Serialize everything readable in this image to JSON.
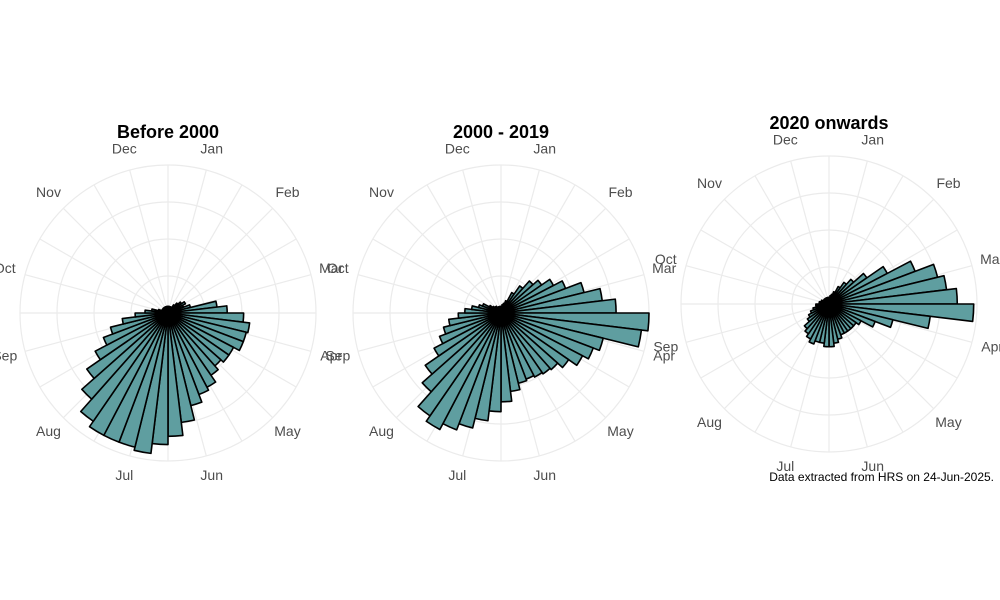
{
  "caption": "Data extracted from HRS on 24-Jun-2025.",
  "colors": {
    "bar_fill": "#5f9ea0",
    "bar_stroke": "#000000",
    "grid": "#ebebeb",
    "month_label": "#4d4d4d"
  },
  "chart_data": [
    {
      "type": "bar",
      "coord": "polar",
      "title": "Before 2000",
      "month_labels": [
        "Jan",
        "Feb",
        "Mar",
        "Apr",
        "May",
        "Jun",
        "Jul",
        "Aug",
        "Sep",
        "Oct",
        "Nov",
        "Dec"
      ],
      "week": [
        1,
        2,
        3,
        4,
        5,
        6,
        7,
        8,
        9,
        10,
        11,
        12,
        13,
        14,
        15,
        16,
        17,
        18,
        19,
        20,
        21,
        22,
        23,
        24,
        25,
        26,
        27,
        28,
        29,
        30,
        31,
        32,
        33,
        34,
        35,
        36,
        37,
        38,
        39,
        40,
        41,
        42,
        43,
        44,
        45,
        46,
        47,
        48,
        49,
        50,
        51,
        52
      ],
      "values": [
        4,
        4,
        4,
        4,
        4,
        6,
        8,
        10,
        12,
        10,
        14,
        30,
        36,
        46,
        50,
        49,
        49,
        45,
        45,
        43,
        46,
        51,
        53,
        58,
        67,
        75,
        80,
        86,
        84,
        84,
        84,
        80,
        70,
        60,
        50,
        42,
        36,
        28,
        20,
        14,
        10,
        6,
        4,
        4,
        4,
        4,
        4,
        4,
        4,
        4,
        4,
        4
      ],
      "rlim": [
        0,
        90
      ]
    },
    {
      "type": "bar",
      "coord": "polar",
      "title": "2000 - 2019",
      "month_labels": [
        "Jan",
        "Feb",
        "Mar",
        "Apr",
        "May",
        "Jun",
        "Jul",
        "Aug",
        "Sep",
        "Oct",
        "Nov",
        "Dec"
      ],
      "week": [
        1,
        2,
        3,
        4,
        5,
        6,
        7,
        8,
        9,
        10,
        11,
        12,
        13,
        14,
        15,
        16,
        17,
        18,
        19,
        20,
        21,
        22,
        23,
        24,
        25,
        26,
        27,
        28,
        29,
        30,
        31,
        32,
        33,
        34,
        35,
        36,
        37,
        38,
        39,
        40,
        41,
        42,
        43,
        44,
        45,
        46,
        47,
        48,
        49,
        50,
        51,
        52
      ],
      "values": [
        4,
        5,
        6,
        8,
        14,
        20,
        26,
        30,
        36,
        42,
        52,
        62,
        70,
        90,
        86,
        64,
        60,
        56,
        50,
        46,
        45,
        44,
        43,
        44,
        48,
        54,
        60,
        66,
        72,
        76,
        80,
        76,
        64,
        56,
        46,
        40,
        36,
        32,
        26,
        22,
        18,
        14,
        12,
        8,
        6,
        5,
        5,
        4,
        4,
        4,
        4,
        4
      ],
      "rlim": [
        0,
        90
      ]
    },
    {
      "type": "bar",
      "coord": "polar",
      "title": "2020 onwards",
      "month_labels": [
        "Jan",
        "Feb",
        "Mar",
        "Apr",
        "May",
        "Jun",
        "Jul",
        "Aug",
        "Sep",
        "Oct",
        "Nov",
        "Dec"
      ],
      "week": [
        1,
        2,
        3,
        4,
        5,
        6,
        7,
        8,
        9,
        10,
        11,
        12,
        13,
        14,
        15,
        16,
        17,
        18,
        19,
        20,
        21,
        22,
        23,
        24,
        25,
        26,
        27,
        28,
        29,
        30,
        31,
        32,
        33,
        34,
        35,
        36,
        37,
        38,
        39,
        40,
        41,
        42,
        43,
        44,
        45,
        46,
        47,
        48,
        49,
        50,
        51,
        52
      ],
      "values": [
        4,
        5,
        6,
        8,
        12,
        16,
        20,
        28,
        40,
        56,
        68,
        72,
        78,
        88,
        62,
        40,
        30,
        22,
        20,
        20,
        20,
        20,
        20,
        22,
        24,
        26,
        26,
        24,
        24,
        26,
        24,
        22,
        20,
        16,
        14,
        12,
        10,
        8,
        8,
        6,
        6,
        5,
        5,
        4,
        4,
        4,
        4,
        4,
        4,
        4,
        4,
        4
      ],
      "rlim": [
        0,
        90
      ]
    }
  ]
}
